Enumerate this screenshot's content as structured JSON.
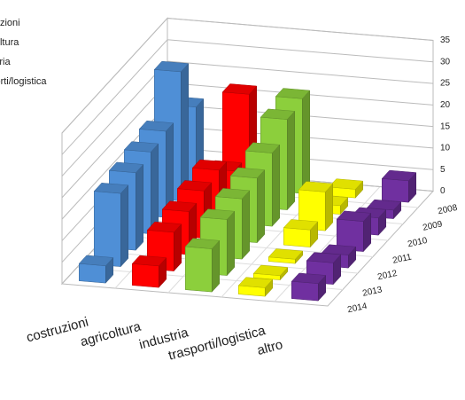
{
  "chart_data": {
    "type": "bar3d",
    "categories": [
      "2008",
      "2009",
      "2010",
      "2011",
      "2012",
      "2013",
      "2014"
    ],
    "series": [
      {
        "name": "costruzioni",
        "color": "#4f8fd6",
        "values": [
          18,
          30,
          20,
          19,
          18,
          17,
          4
        ]
      },
      {
        "name": "agricoltura",
        "color": "#ff0000",
        "values": [
          22,
          8,
          12,
          11,
          10,
          9,
          5
        ]
      },
      {
        "name": "industria",
        "color": "#8ccf3c",
        "values": [
          22,
          21,
          17,
          15,
          14,
          13,
          10
        ]
      },
      {
        "name": "trasporti/logistica",
        "color": "#ffff00",
        "values": [
          2,
          2,
          9,
          4,
          1,
          1,
          2
        ]
      },
      {
        "name": "altro",
        "color": "#7030a0",
        "values": [
          5,
          2,
          4,
          7,
          3,
          5,
          4
        ]
      }
    ],
    "ylim": [
      0,
      35
    ],
    "yticks": [
      0,
      5,
      10,
      15,
      20,
      25,
      30,
      35
    ],
    "grid": true
  }
}
